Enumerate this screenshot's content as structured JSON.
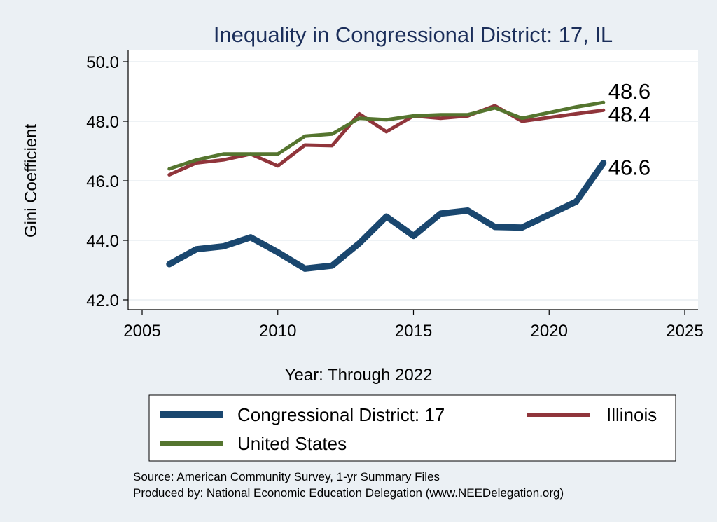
{
  "chart_data": {
    "type": "line",
    "title": "Inequality in Congressional District:  17, IL",
    "xlabel": "Year: Through 2022",
    "ylabel": "Gini Coefficient",
    "xlim": [
      2005,
      2025
    ],
    "ylim": [
      42.0,
      50.0
    ],
    "x_ticks": [
      "2005",
      "2010",
      "2015",
      "2020",
      "2025"
    ],
    "y_ticks": [
      "42.0",
      "44.0",
      "46.0",
      "48.0",
      "50.0"
    ],
    "grid": true,
    "legend_position": "bottom",
    "series": [
      {
        "name": "Congressional District:  17",
        "color": "#1a476f",
        "end_label": "46.6",
        "x": [
          2006,
          2007,
          2008,
          2009,
          2010,
          2011,
          2012,
          2013,
          2014,
          2015,
          2016,
          2017,
          2018,
          2019,
          2021,
          2022
        ],
        "y": [
          43.2,
          43.7,
          43.8,
          44.1,
          43.6,
          43.05,
          43.15,
          43.9,
          44.8,
          44.15,
          44.9,
          45.0,
          44.45,
          44.43,
          45.3,
          46.6
        ]
      },
      {
        "name": "Illinois",
        "color": "#90353b",
        "end_label": "48.4",
        "x": [
          2006,
          2007,
          2008,
          2009,
          2010,
          2011,
          2012,
          2013,
          2014,
          2015,
          2016,
          2017,
          2018,
          2019,
          2021,
          2022
        ],
        "y": [
          46.2,
          46.6,
          46.7,
          46.9,
          46.5,
          47.2,
          47.18,
          48.25,
          47.65,
          48.18,
          48.1,
          48.18,
          48.52,
          48.0,
          48.25,
          48.37
        ]
      },
      {
        "name": "United States",
        "color": "#55752f",
        "end_label": "48.6",
        "x": [
          2006,
          2007,
          2008,
          2009,
          2010,
          2011,
          2012,
          2013,
          2014,
          2015,
          2016,
          2017,
          2018,
          2019,
          2021,
          2022
        ],
        "y": [
          46.4,
          46.7,
          46.9,
          46.9,
          46.9,
          47.5,
          47.57,
          48.1,
          48.05,
          48.18,
          48.22,
          48.22,
          48.45,
          48.1,
          48.48,
          48.63
        ]
      }
    ],
    "notes": [
      "Source: American Community Survey, 1-yr Summary Files",
      "Produced by: National Economic Education Delegation (www.NEEDelegation.org)"
    ]
  }
}
